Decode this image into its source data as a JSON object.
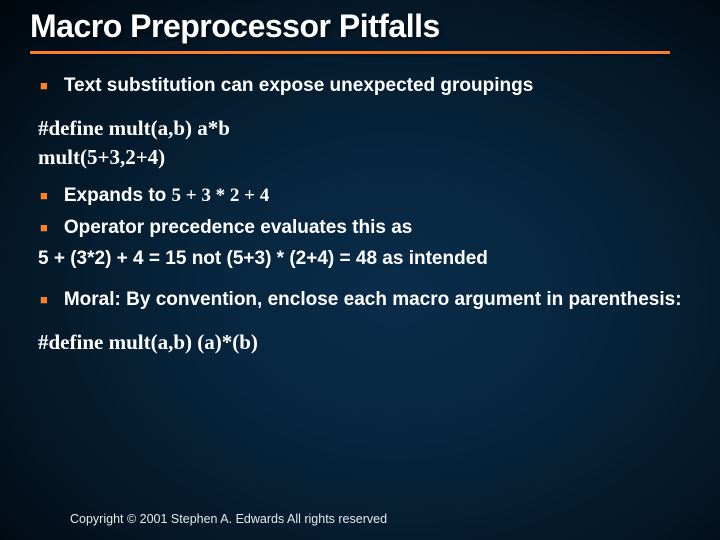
{
  "accent_color": "#ff7f27",
  "title": "Macro Preprocessor Pitfalls",
  "bullets": {
    "b1": "Text substitution can expose unexpected groupings",
    "b2_prefix": "Expands to ",
    "b2_code": "5 + 3 * 2 + 4",
    "b3": "Operator precedence evaluates this as",
    "b4": "Moral: By convention, enclose each macro argument in parenthesis:"
  },
  "code": {
    "define1": "#define mult(a,b) a*b",
    "call": "mult(5+3,2+4)",
    "define2": "#define mult(a,b) (a)*(b)"
  },
  "eval_line": "5 + (3*2) + 4  = 15 not (5+3) * (2+4) = 48 as intended",
  "footer": "Copyright © 2001 Stephen A. Edwards  All rights reserved"
}
